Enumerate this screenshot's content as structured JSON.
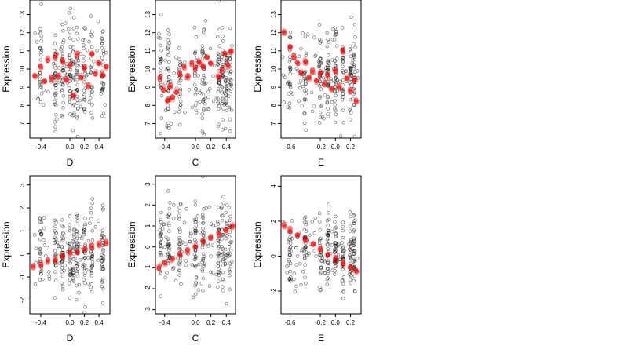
{
  "chart_data": [
    {
      "type": "scatter",
      "xlabel": "D",
      "ylabel": "Expression",
      "xlim": [
        -0.55,
        0.55
      ],
      "ylim": [
        6.2,
        13.8
      ],
      "xticks": [
        -0.4,
        0.0,
        0.2,
        0.4
      ],
      "xtick_labels": [
        "-0.4",
        "0.0",
        "0.2",
        "0.4"
      ],
      "yticks": [
        7,
        8,
        9,
        10,
        11,
        12,
        13
      ],
      "ytick_labels": [
        "7",
        "8",
        "9",
        "10",
        "11",
        "12",
        "13"
      ],
      "series": [
        {
          "role": "observed",
          "color": "#000000",
          "x_range": [
            -0.5,
            0.5
          ],
          "y_center": 9.7,
          "y_spread": 1.4,
          "count": 300,
          "clusters": [
            -0.4,
            -0.2,
            -0.1,
            0.0,
            0.05,
            0.1,
            0.2,
            0.3,
            0.45
          ]
        },
        {
          "role": "fitted",
          "color": "#ff0000",
          "points": [
            [
              -0.48,
              9.6
            ],
            [
              -0.4,
              10.1
            ],
            [
              -0.35,
              9.3
            ],
            [
              -0.3,
              10.5
            ],
            [
              -0.25,
              9.5
            ],
            [
              -0.2,
              10.7
            ],
            [
              -0.15,
              9.6
            ],
            [
              -0.1,
              10.4
            ],
            [
              -0.05,
              9.4
            ],
            [
              0.0,
              10.2
            ],
            [
              0.05,
              8.5
            ],
            [
              0.1,
              10.8
            ],
            [
              0.15,
              9.6
            ],
            [
              0.2,
              10.1
            ],
            [
              0.25,
              9.1
            ],
            [
              0.3,
              10.9
            ],
            [
              0.35,
              9.8
            ],
            [
              0.4,
              10.3
            ],
            [
              0.45,
              9.7
            ],
            [
              0.5,
              10.1
            ]
          ]
        }
      ]
    },
    {
      "type": "scatter",
      "xlabel": "C",
      "ylabel": "Expression",
      "xlim": [
        -0.52,
        0.52
      ],
      "ylim": [
        6.2,
        13.8
      ],
      "xticks": [
        -0.4,
        0.0,
        0.2,
        0.4
      ],
      "xtick_labels": [
        "-0.4",
        "0.0",
        "0.2",
        "0.4"
      ],
      "yticks": [
        7,
        8,
        9,
        10,
        11,
        12,
        13
      ],
      "ytick_labels": [
        "7",
        "8",
        "9",
        "10",
        "11",
        "12",
        "13"
      ],
      "series": [
        {
          "role": "observed",
          "color": "#000000",
          "x_range": [
            -0.48,
            0.48
          ],
          "y_center": 9.5,
          "y_spread": 1.4,
          "count": 300,
          "clusters": [
            -0.45,
            -0.35,
            -0.2,
            0.0,
            0.1,
            0.3,
            0.35,
            0.4,
            0.45
          ]
        },
        {
          "role": "fitted",
          "color": "#ff0000",
          "points": [
            [
              -0.46,
              9.5
            ],
            [
              -0.42,
              8.9
            ],
            [
              -0.36,
              8.3
            ],
            [
              -0.33,
              9.0
            ],
            [
              -0.3,
              8.4
            ],
            [
              -0.25,
              8.8
            ],
            [
              -0.2,
              9.7
            ],
            [
              -0.15,
              10.1
            ],
            [
              -0.1,
              9.6
            ],
            [
              -0.05,
              10.3
            ],
            [
              0.0,
              10.0
            ],
            [
              0.05,
              10.4
            ],
            [
              0.1,
              10.1
            ],
            [
              0.15,
              10.6
            ],
            [
              0.2,
              10.3
            ],
            [
              0.3,
              9.6
            ],
            [
              0.35,
              9.9
            ],
            [
              0.38,
              10.8
            ],
            [
              0.42,
              10.2
            ],
            [
              0.46,
              11.0
            ]
          ]
        }
      ]
    },
    {
      "type": "scatter",
      "xlabel": "E",
      "ylabel": "Expression",
      "xlim": [
        -0.72,
        0.34
      ],
      "ylim": [
        6.2,
        13.8
      ],
      "xticks": [
        -0.6,
        -0.2,
        0.0,
        0.2
      ],
      "xtick_labels": [
        "-0.6",
        "-0.2",
        "0.0",
        "0.2"
      ],
      "yticks": [
        7,
        8,
        9,
        10,
        11,
        12,
        13
      ],
      "ytick_labels": [
        "7",
        "8",
        "9",
        "10",
        "11",
        "12",
        "13"
      ],
      "series": [
        {
          "role": "observed",
          "color": "#000000",
          "x_range": [
            -0.7,
            0.3
          ],
          "y_center": 9.8,
          "y_spread": 1.3,
          "count": 300,
          "clusters": [
            -0.6,
            -0.4,
            -0.2,
            -0.1,
            0.0,
            0.1,
            0.2,
            0.25
          ]
        },
        {
          "role": "fitted",
          "color": "#ff0000",
          "points": [
            [
              -0.68,
              12.0
            ],
            [
              -0.6,
              11.2
            ],
            [
              -0.55,
              10.7
            ],
            [
              -0.5,
              10.3
            ],
            [
              -0.45,
              9.8
            ],
            [
              -0.4,
              10.4
            ],
            [
              -0.35,
              9.5
            ],
            [
              -0.3,
              9.9
            ],
            [
              -0.25,
              9.3
            ],
            [
              -0.2,
              9.8
            ],
            [
              -0.15,
              9.2
            ],
            [
              -0.1,
              9.6
            ],
            [
              -0.05,
              8.9
            ],
            [
              0.0,
              9.9
            ],
            [
              0.05,
              9.0
            ],
            [
              0.1,
              11.0
            ],
            [
              0.15,
              9.5
            ],
            [
              0.2,
              8.8
            ],
            [
              0.25,
              9.4
            ],
            [
              0.28,
              8.2
            ]
          ]
        }
      ]
    },
    {
      "type": "scatter",
      "xlabel": "D",
      "ylabel": "Expression",
      "xlim": [
        -0.55,
        0.55
      ],
      "ylim": [
        -2.6,
        3.4
      ],
      "xticks": [
        -0.4,
        0.0,
        0.2,
        0.4
      ],
      "xtick_labels": [
        "-0.4",
        "0.0",
        "0.2",
        "0.4"
      ],
      "yticks": [
        -2,
        -1,
        0,
        1,
        2,
        3
      ],
      "ytick_labels": [
        "-2",
        "-1",
        "0",
        "1",
        "2",
        "3"
      ],
      "series": [
        {
          "role": "observed",
          "color": "#000000",
          "x_range": [
            -0.5,
            0.5
          ],
          "y_center": 0.0,
          "y_spread": 0.9,
          "count": 300,
          "clusters": [
            -0.4,
            -0.2,
            -0.1,
            0.0,
            0.05,
            0.1,
            0.2,
            0.3,
            0.45
          ]
        },
        {
          "role": "fitted",
          "color": "#ff0000",
          "points": [
            [
              -0.5,
              -0.55
            ],
            [
              -0.4,
              -0.45
            ],
            [
              -0.3,
              -0.33
            ],
            [
              -0.2,
              -0.22
            ],
            [
              -0.1,
              -0.1
            ],
            [
              0.0,
              0.0
            ],
            [
              0.1,
              0.1
            ],
            [
              0.2,
              0.22
            ],
            [
              0.3,
              0.32
            ],
            [
              0.4,
              0.43
            ],
            [
              0.5,
              0.52
            ]
          ]
        }
      ]
    },
    {
      "type": "scatter",
      "xlabel": "C",
      "ylabel": "Expression",
      "xlim": [
        -0.52,
        0.52
      ],
      "ylim": [
        -3.2,
        3.4
      ],
      "xticks": [
        -0.4,
        0.0,
        0.2,
        0.4
      ],
      "xtick_labels": [
        "-0.4",
        "0.0",
        "0.2",
        "0.4"
      ],
      "yticks": [
        -3,
        -2,
        -1,
        0,
        1,
        2,
        3
      ],
      "ytick_labels": [
        "-3",
        "-2",
        "-1",
        "0",
        "1",
        "2",
        "3"
      ],
      "series": [
        {
          "role": "observed",
          "color": "#000000",
          "x_range": [
            -0.48,
            0.48
          ],
          "y_center": 0.0,
          "y_spread": 1.0,
          "count": 300,
          "clusters": [
            -0.45,
            -0.35,
            -0.2,
            0.0,
            0.1,
            0.3,
            0.35,
            0.4,
            0.45
          ]
        },
        {
          "role": "fitted",
          "color": "#ff0000",
          "points": [
            [
              -0.48,
              -0.95
            ],
            [
              -0.4,
              -0.78
            ],
            [
              -0.3,
              -0.58
            ],
            [
              -0.2,
              -0.38
            ],
            [
              -0.1,
              -0.18
            ],
            [
              0.0,
              0.02
            ],
            [
              0.1,
              0.22
            ],
            [
              0.2,
              0.42
            ],
            [
              0.3,
              0.62
            ],
            [
              0.4,
              0.82
            ],
            [
              0.48,
              1.0
            ]
          ]
        }
      ]
    },
    {
      "type": "scatter",
      "xlabel": "E",
      "ylabel": "Expression",
      "xlim": [
        -0.72,
        0.34
      ],
      "ylim": [
        -3.3,
        4.6
      ],
      "xticks": [
        -0.6,
        -0.2,
        0.0,
        0.2
      ],
      "xtick_labels": [
        "-0.6",
        "-0.2",
        "0.0",
        "0.2"
      ],
      "yticks": [
        -2,
        0,
        2,
        4
      ],
      "ytick_labels": [
        "-2",
        "0",
        "2",
        "4"
      ],
      "series": [
        {
          "role": "observed",
          "color": "#000000",
          "x_range": [
            -0.7,
            0.3
          ],
          "y_center": 0.2,
          "y_spread": 1.1,
          "count": 300,
          "clusters": [
            -0.6,
            -0.4,
            -0.2,
            -0.1,
            0.0,
            0.1,
            0.2,
            0.25
          ]
        },
        {
          "role": "fitted",
          "color": "#ff0000",
          "points": [
            [
              -0.68,
              1.75
            ],
            [
              -0.6,
              1.5
            ],
            [
              -0.5,
              1.2
            ],
            [
              -0.4,
              0.95
            ],
            [
              -0.3,
              0.65
            ],
            [
              -0.2,
              0.4
            ],
            [
              -0.1,
              0.1
            ],
            [
              0.0,
              -0.15
            ],
            [
              0.1,
              -0.4
            ],
            [
              0.2,
              -0.65
            ],
            [
              0.28,
              -0.85
            ]
          ]
        }
      ]
    }
  ]
}
